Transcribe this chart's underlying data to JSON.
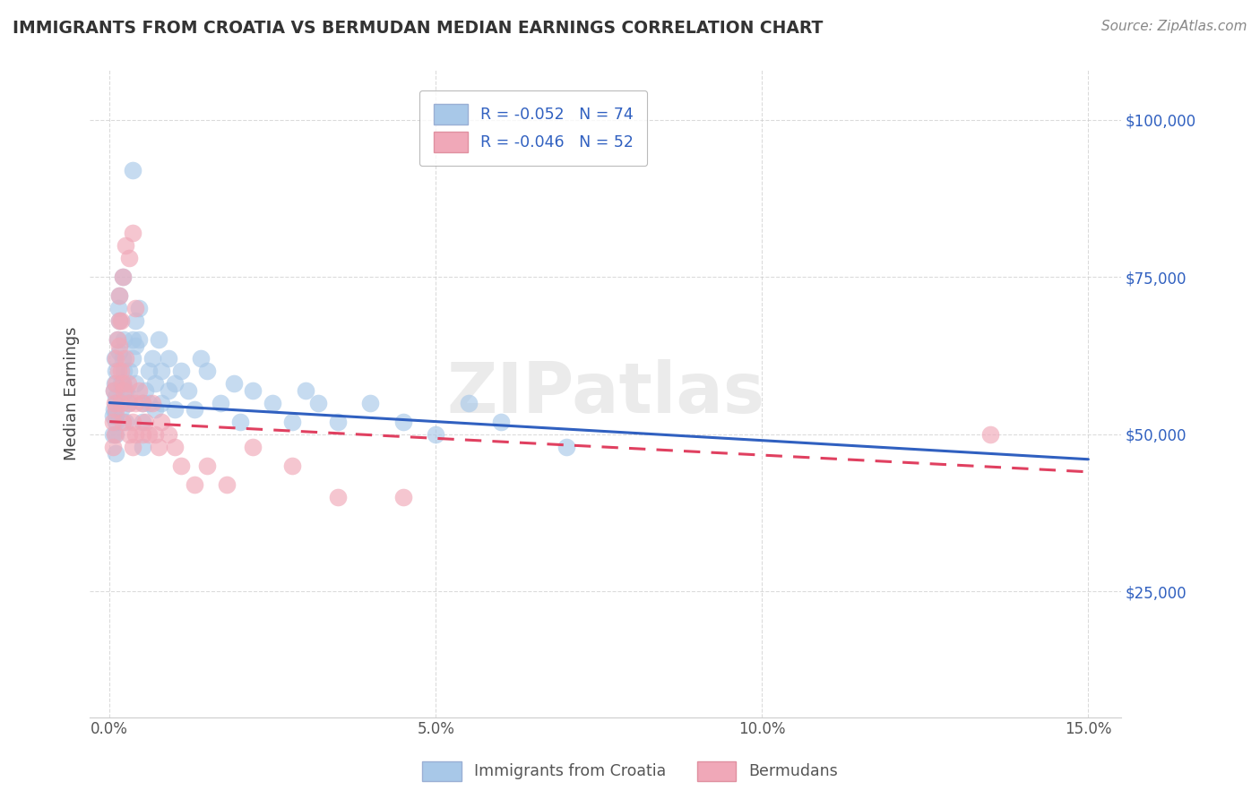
{
  "title": "IMMIGRANTS FROM CROATIA VS BERMUDAN MEDIAN EARNINGS CORRELATION CHART",
  "source_text": "Source: ZipAtlas.com",
  "ylabel": "Median Earnings",
  "xlabel_ticks": [
    "0.0%",
    "5.0%",
    "10.0%",
    "15.0%"
  ],
  "xlabel_tick_vals": [
    0.0,
    5.0,
    10.0,
    15.0
  ],
  "ylabel_ticks": [
    "$25,000",
    "$50,000",
    "$75,000",
    "$100,000"
  ],
  "ylabel_tick_vals": [
    25000,
    50000,
    75000,
    100000
  ],
  "xlim": [
    -0.3,
    15.5
  ],
  "ylim": [
    5000,
    108000
  ],
  "watermark": "ZIPatlas",
  "legend_blue_r": "R = -0.052",
  "legend_blue_n": "N = 74",
  "legend_pink_r": "R = -0.046",
  "legend_pink_n": "N = 52",
  "blue_color": "#A8C8E8",
  "pink_color": "#F0A8B8",
  "trendline_blue": "#3060C0",
  "trendline_pink": "#E04060",
  "blue_x": [
    0.05,
    0.05,
    0.07,
    0.07,
    0.08,
    0.08,
    0.09,
    0.09,
    0.1,
    0.1,
    0.1,
    0.1,
    0.1,
    0.12,
    0.13,
    0.15,
    0.15,
    0.15,
    0.18,
    0.18,
    0.2,
    0.2,
    0.22,
    0.22,
    0.25,
    0.25,
    0.28,
    0.3,
    0.3,
    0.35,
    0.35,
    0.4,
    0.4,
    0.4,
    0.45,
    0.45,
    0.5,
    0.5,
    0.5,
    0.55,
    0.6,
    0.6,
    0.65,
    0.7,
    0.7,
    0.75,
    0.8,
    0.8,
    0.9,
    0.9,
    1.0,
    1.0,
    1.1,
    1.2,
    1.3,
    1.4,
    1.5,
    1.7,
    1.9,
    2.0,
    2.2,
    2.5,
    2.8,
    3.0,
    3.2,
    3.5,
    4.0,
    4.5,
    5.0,
    5.5,
    6.0,
    7.0,
    0.35,
    0.2
  ],
  "blue_y": [
    53000,
    50000,
    57000,
    54000,
    62000,
    58000,
    55000,
    52000,
    60000,
    56000,
    53000,
    50000,
    47000,
    65000,
    70000,
    68000,
    72000,
    63000,
    58000,
    54000,
    62000,
    58000,
    65000,
    60000,
    57000,
    52000,
    55000,
    60000,
    56000,
    65000,
    62000,
    68000,
    64000,
    58000,
    70000,
    65000,
    55000,
    52000,
    48000,
    57000,
    60000,
    55000,
    62000,
    58000,
    54000,
    65000,
    60000,
    55000,
    62000,
    57000,
    58000,
    54000,
    60000,
    57000,
    54000,
    62000,
    60000,
    55000,
    58000,
    52000,
    57000,
    55000,
    52000,
    57000,
    55000,
    52000,
    55000,
    52000,
    50000,
    55000,
    52000,
    48000,
    92000,
    75000
  ],
  "pink_x": [
    0.05,
    0.05,
    0.07,
    0.08,
    0.08,
    0.1,
    0.1,
    0.1,
    0.12,
    0.13,
    0.15,
    0.15,
    0.18,
    0.18,
    0.2,
    0.2,
    0.22,
    0.25,
    0.28,
    0.3,
    0.3,
    0.35,
    0.35,
    0.4,
    0.4,
    0.45,
    0.5,
    0.5,
    0.55,
    0.6,
    0.65,
    0.7,
    0.75,
    0.8,
    0.9,
    1.0,
    1.1,
    1.3,
    1.5,
    1.8,
    2.2,
    2.8,
    3.5,
    4.5,
    0.15,
    0.18,
    0.2,
    0.25,
    0.3,
    0.35,
    0.4,
    13.5
  ],
  "pink_y": [
    52000,
    48000,
    57000,
    55000,
    50000,
    62000,
    58000,
    54000,
    65000,
    60000,
    68000,
    64000,
    60000,
    55000,
    58000,
    52000,
    57000,
    62000,
    58000,
    55000,
    50000,
    52000,
    48000,
    55000,
    50000,
    57000,
    55000,
    50000,
    52000,
    50000,
    55000,
    50000,
    48000,
    52000,
    50000,
    48000,
    45000,
    42000,
    45000,
    42000,
    48000,
    45000,
    40000,
    40000,
    72000,
    68000,
    75000,
    80000,
    78000,
    82000,
    70000,
    50000
  ],
  "blue_trend_x0": 0,
  "blue_trend_y0": 55000,
  "blue_trend_x1": 15,
  "blue_trend_y1": 46000,
  "pink_trend_x0": 0,
  "pink_trend_y0": 52000,
  "pink_trend_x1": 15,
  "pink_trend_y1": 44000
}
